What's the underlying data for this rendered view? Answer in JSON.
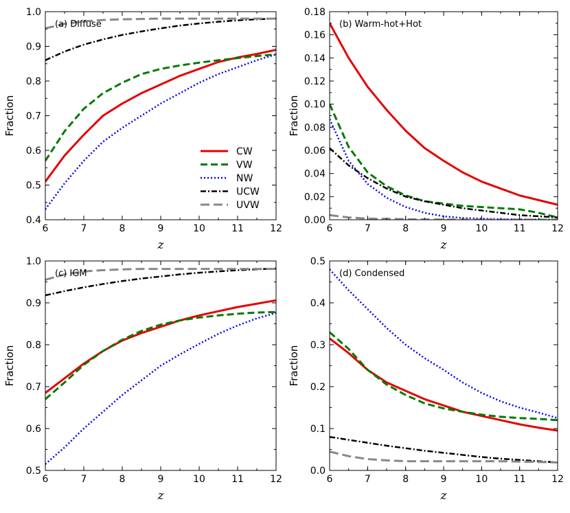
{
  "figure": {
    "title": ""
  },
  "chart_data": [
    {
      "id": "a",
      "type": "line",
      "title": "(a) Diffuse",
      "xlabel": "z",
      "ylabel": "Fraction",
      "xlim": [
        6,
        12
      ],
      "ylim": [
        0.4,
        1.0
      ],
      "xticks": [
        "6",
        "7",
        "8",
        "9",
        "10",
        "11",
        "12"
      ],
      "yticks": [
        "0.4",
        "0.5",
        "0.6",
        "0.7",
        "0.8",
        "0.9",
        "1.0"
      ],
      "legend": {
        "location": "lower-right",
        "entries": [
          "CW",
          "VW",
          "NW",
          "UCW",
          "UVW"
        ]
      },
      "x": [
        6,
        6.5,
        7,
        7.5,
        8,
        8.5,
        9,
        9.5,
        10,
        10.5,
        11,
        11.5,
        12
      ],
      "series": [
        {
          "name": "CW",
          "values": [
            0.51,
            0.585,
            0.645,
            0.7,
            0.735,
            0.765,
            0.79,
            0.815,
            0.835,
            0.855,
            0.868,
            0.878,
            0.89
          ]
        },
        {
          "name": "VW",
          "values": [
            0.57,
            0.655,
            0.72,
            0.765,
            0.795,
            0.82,
            0.835,
            0.845,
            0.853,
            0.86,
            0.866,
            0.872,
            0.877
          ]
        },
        {
          "name": "NW",
          "values": [
            0.43,
            0.505,
            0.57,
            0.625,
            0.665,
            0.7,
            0.735,
            0.765,
            0.795,
            0.82,
            0.84,
            0.86,
            0.877
          ]
        },
        {
          "name": "UCW",
          "values": [
            0.86,
            0.885,
            0.905,
            0.92,
            0.933,
            0.943,
            0.952,
            0.96,
            0.966,
            0.971,
            0.975,
            0.978,
            0.98
          ]
        },
        {
          "name": "UVW",
          "values": [
            0.952,
            0.965,
            0.972,
            0.976,
            0.978,
            0.979,
            0.98,
            0.98,
            0.98,
            0.98,
            0.98,
            0.98,
            0.98
          ]
        }
      ]
    },
    {
      "id": "b",
      "type": "line",
      "title": "(b) Warm-hot+Hot",
      "xlabel": "z",
      "ylabel": "Fraction",
      "xlim": [
        6,
        12
      ],
      "ylim": [
        0.0,
        0.18
      ],
      "xticks": [
        "6",
        "7",
        "8",
        "9",
        "10",
        "11",
        "12"
      ],
      "yticks": [
        "0.00",
        "0.02",
        "0.04",
        "0.06",
        "0.08",
        "0.10",
        "0.12",
        "0.14",
        "0.16",
        "0.18"
      ],
      "x": [
        6,
        6.5,
        7,
        7.5,
        8,
        8.5,
        9,
        9.5,
        10,
        10.5,
        11,
        11.5,
        12
      ],
      "series": [
        {
          "name": "CW",
          "values": [
            0.17,
            0.14,
            0.115,
            0.095,
            0.077,
            0.062,
            0.051,
            0.041,
            0.033,
            0.027,
            0.021,
            0.017,
            0.013
          ]
        },
        {
          "name": "VW",
          "values": [
            0.1,
            0.063,
            0.041,
            0.029,
            0.021,
            0.016,
            0.014,
            0.012,
            0.011,
            0.01,
            0.009,
            0.006,
            0.002
          ]
        },
        {
          "name": "NW",
          "values": [
            0.087,
            0.051,
            0.031,
            0.019,
            0.011,
            0.006,
            0.003,
            0.0015,
            0.001,
            0.0005,
            0.0003,
            0.0002,
            0.0001
          ]
        },
        {
          "name": "UCW",
          "values": [
            0.062,
            0.047,
            0.036,
            0.027,
            0.02,
            0.016,
            0.013,
            0.01,
            0.008,
            0.006,
            0.004,
            0.003,
            0.002
          ]
        },
        {
          "name": "UVW",
          "values": [
            0.004,
            0.002,
            0.001,
            0.0008,
            0.0005,
            0.0003,
            0.0002,
            0.0001,
            0.0001,
            0.0001,
            0.0001,
            0.0001,
            0.0001
          ]
        }
      ]
    },
    {
      "id": "c",
      "type": "line",
      "title": "(c) IGM",
      "xlabel": "z",
      "ylabel": "Fraction",
      "xlim": [
        6,
        12
      ],
      "ylim": [
        0.5,
        1.0
      ],
      "xticks": [
        "6",
        "7",
        "8",
        "9",
        "10",
        "11",
        "12"
      ],
      "yticks": [
        "0.5",
        "0.6",
        "0.7",
        "0.8",
        "0.9",
        "1.0"
      ],
      "x": [
        6,
        6.5,
        7,
        7.5,
        8,
        8.5,
        9,
        9.5,
        10,
        10.5,
        11,
        11.5,
        12
      ],
      "series": [
        {
          "name": "CW",
          "values": [
            0.685,
            0.72,
            0.755,
            0.785,
            0.81,
            0.828,
            0.843,
            0.858,
            0.87,
            0.88,
            0.89,
            0.898,
            0.906
          ]
        },
        {
          "name": "VW",
          "values": [
            0.67,
            0.71,
            0.752,
            0.785,
            0.812,
            0.833,
            0.848,
            0.858,
            0.865,
            0.87,
            0.874,
            0.877,
            0.878
          ]
        },
        {
          "name": "NW",
          "values": [
            0.515,
            0.555,
            0.6,
            0.64,
            0.68,
            0.715,
            0.75,
            0.777,
            0.802,
            0.826,
            0.846,
            0.863,
            0.876
          ]
        },
        {
          "name": "UCW",
          "values": [
            0.918,
            0.928,
            0.937,
            0.945,
            0.952,
            0.958,
            0.963,
            0.968,
            0.972,
            0.975,
            0.978,
            0.98,
            0.982
          ]
        },
        {
          "name": "UVW",
          "values": [
            0.955,
            0.968,
            0.975,
            0.978,
            0.98,
            0.981,
            0.981,
            0.981,
            0.981,
            0.981,
            0.981,
            0.981,
            0.981
          ]
        }
      ]
    },
    {
      "id": "d",
      "type": "line",
      "title": "(d) Condensed",
      "xlabel": "z",
      "ylabel": "Fraction",
      "xlim": [
        6,
        12
      ],
      "ylim": [
        0.0,
        0.5
      ],
      "xticks": [
        "6",
        "7",
        "8",
        "9",
        "10",
        "11",
        "12"
      ],
      "yticks": [
        "0.0",
        "0.1",
        "0.2",
        "0.3",
        "0.4",
        "0.5"
      ],
      "x": [
        6,
        6.5,
        7,
        7.5,
        8,
        8.5,
        9,
        9.5,
        10,
        10.5,
        11,
        11.5,
        12
      ],
      "series": [
        {
          "name": "CW",
          "values": [
            0.315,
            0.28,
            0.24,
            0.21,
            0.19,
            0.17,
            0.155,
            0.14,
            0.13,
            0.12,
            0.11,
            0.102,
            0.095
          ]
        },
        {
          "name": "VW",
          "values": [
            0.33,
            0.29,
            0.24,
            0.205,
            0.18,
            0.16,
            0.148,
            0.14,
            0.133,
            0.128,
            0.125,
            0.123,
            0.12
          ]
        },
        {
          "name": "NW",
          "values": [
            0.48,
            0.43,
            0.385,
            0.34,
            0.3,
            0.268,
            0.24,
            0.21,
            0.185,
            0.165,
            0.15,
            0.138,
            0.125
          ]
        },
        {
          "name": "UCW",
          "values": [
            0.08,
            0.073,
            0.066,
            0.059,
            0.053,
            0.047,
            0.042,
            0.037,
            0.032,
            0.028,
            0.025,
            0.022,
            0.019
          ]
        },
        {
          "name": "UVW",
          "values": [
            0.045,
            0.034,
            0.027,
            0.024,
            0.022,
            0.022,
            0.022,
            0.022,
            0.022,
            0.022,
            0.021,
            0.02,
            0.019
          ]
        }
      ]
    }
  ],
  "series_styles": {
    "CW": {
      "color": "#e50000",
      "dash": "solid"
    },
    "VW": {
      "color": "#007a00",
      "dash": "dashed"
    },
    "NW": {
      "color": "#0000ee",
      "dash": "dotted"
    },
    "UCW": {
      "color": "#000000",
      "dash": "dashdot"
    },
    "UVW": {
      "color": "#888888",
      "dash": "longdash"
    }
  }
}
